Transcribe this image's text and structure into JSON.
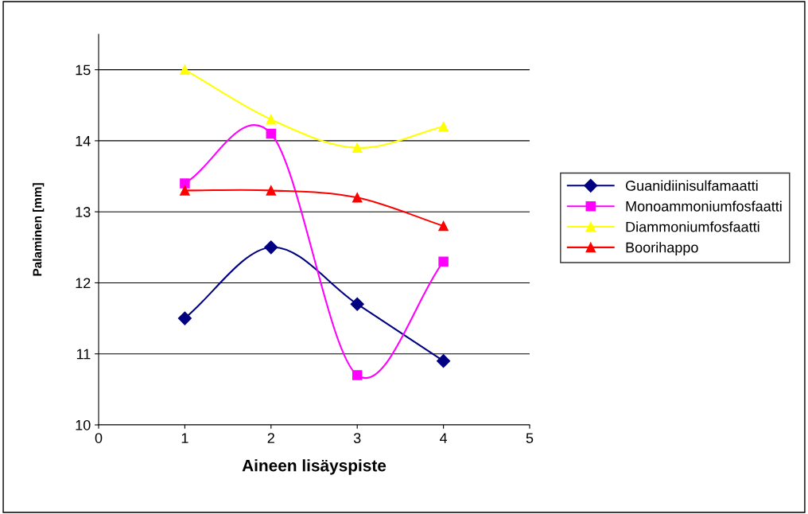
{
  "chart_data": {
    "type": "line",
    "xlabel": "Aineen lisäyspiste",
    "ylabel": "Palaminen [mm]",
    "x": [
      1,
      2,
      3,
      4
    ],
    "series": [
      {
        "name": "Guanidiinisulfamaatti",
        "color": "#000080",
        "marker": "diamond",
        "values": [
          11.5,
          12.5,
          11.7,
          10.9
        ]
      },
      {
        "name": "Monoammoniumfosfaatti",
        "color": "#ff00ff",
        "marker": "square",
        "values": [
          13.4,
          14.1,
          10.7,
          12.3
        ]
      },
      {
        "name": "Diammoniumfosfaatti",
        "color": "#ffff00",
        "marker": "triangle",
        "values": [
          15.0,
          14.3,
          13.9,
          14.2
        ]
      },
      {
        "name": "Boorihappo",
        "color": "#ff0000",
        "marker": "triangle",
        "values": [
          13.3,
          13.3,
          13.2,
          12.8
        ]
      }
    ],
    "xlim": [
      0,
      5
    ],
    "xticks": [
      0,
      1,
      2,
      3,
      4,
      5
    ],
    "ylim": [
      10,
      15.5
    ],
    "yticks": [
      10,
      11,
      12,
      13,
      14,
      15
    ],
    "grid": "y",
    "legend": "right",
    "line_style": "solid"
  }
}
